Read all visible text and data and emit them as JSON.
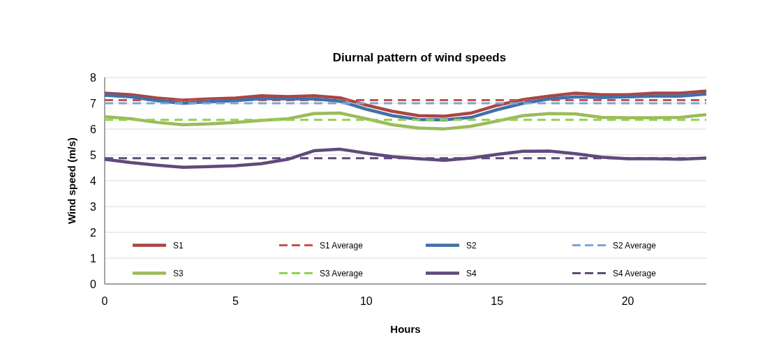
{
  "chart_data": {
    "type": "line",
    "title": "Diurnal pattern of wind speeds",
    "xlabel": "Hours",
    "ylabel": "Wind speed (m/s)",
    "x": [
      0,
      1,
      2,
      3,
      4,
      5,
      6,
      7,
      8,
      9,
      10,
      11,
      12,
      13,
      14,
      15,
      16,
      17,
      18,
      19,
      20,
      21,
      22,
      23
    ],
    "xlim": [
      0,
      23
    ],
    "xticks": [
      0,
      5,
      10,
      15,
      20
    ],
    "ylim": [
      0,
      8
    ],
    "yticks": [
      0,
      1,
      2,
      3,
      4,
      5,
      6,
      7,
      8
    ],
    "grid": "y",
    "legend": "bottom",
    "series": [
      {
        "name": "S1",
        "color": "#a94643",
        "line_style": "solid",
        "values": [
          7.39,
          7.33,
          7.2,
          7.12,
          7.17,
          7.2,
          7.29,
          7.26,
          7.29,
          7.21,
          6.93,
          6.69,
          6.52,
          6.5,
          6.62,
          6.92,
          7.14,
          7.28,
          7.39,
          7.33,
          7.33,
          7.39,
          7.39,
          7.47
        ]
      },
      {
        "name": "S1 Average",
        "color": "#c9504d",
        "line_style": "dashed",
        "values": [
          7.12,
          7.12,
          7.12,
          7.12,
          7.12,
          7.12,
          7.12,
          7.12,
          7.12,
          7.12,
          7.12,
          7.12,
          7.12,
          7.12,
          7.12,
          7.12,
          7.12,
          7.12,
          7.12,
          7.12,
          7.12,
          7.12,
          7.12,
          7.12
        ]
      },
      {
        "name": "S2",
        "color": "#4170a8",
        "line_style": "solid",
        "values": [
          7.31,
          7.25,
          7.1,
          7.0,
          7.06,
          7.1,
          7.18,
          7.17,
          7.17,
          7.08,
          6.77,
          6.52,
          6.37,
          6.36,
          6.45,
          6.75,
          7.0,
          7.17,
          7.25,
          7.22,
          7.25,
          7.28,
          7.28,
          7.36
        ]
      },
      {
        "name": "S2 Average",
        "color": "#7fa3d1",
        "line_style": "dashed",
        "values": [
          7.0,
          7.0,
          7.0,
          7.0,
          7.0,
          7.0,
          7.0,
          7.0,
          7.0,
          7.0,
          7.0,
          7.0,
          7.0,
          7.0,
          7.0,
          7.0,
          7.0,
          7.0,
          7.0,
          7.0,
          7.0,
          7.0,
          7.0,
          7.0
        ]
      },
      {
        "name": "S3",
        "color": "#9bbb59",
        "line_style": "solid",
        "values": [
          6.48,
          6.4,
          6.26,
          6.17,
          6.2,
          6.26,
          6.34,
          6.4,
          6.6,
          6.62,
          6.4,
          6.17,
          6.04,
          6.01,
          6.11,
          6.31,
          6.52,
          6.6,
          6.59,
          6.45,
          6.44,
          6.44,
          6.45,
          6.56
        ]
      },
      {
        "name": "S3 Average",
        "color": "#92d050",
        "line_style": "dashed",
        "values": [
          6.36,
          6.36,
          6.36,
          6.36,
          6.36,
          6.36,
          6.36,
          6.36,
          6.36,
          6.36,
          6.36,
          6.36,
          6.36,
          6.36,
          6.36,
          6.36,
          6.36,
          6.36,
          6.36,
          6.36,
          6.36,
          6.36,
          6.36,
          6.36
        ]
      },
      {
        "name": "S4",
        "color": "#604a7b",
        "line_style": "solid",
        "values": [
          4.83,
          4.7,
          4.6,
          4.52,
          4.55,
          4.58,
          4.66,
          4.83,
          5.16,
          5.22,
          5.07,
          4.93,
          4.85,
          4.79,
          4.88,
          5.02,
          5.14,
          5.15,
          5.05,
          4.91,
          4.85,
          4.85,
          4.83,
          4.88
        ]
      },
      {
        "name": "S4 Average",
        "color": "#604a7b",
        "line_style": "dashed",
        "values": [
          4.87,
          4.87,
          4.87,
          4.87,
          4.87,
          4.87,
          4.87,
          4.87,
          4.87,
          4.87,
          4.87,
          4.87,
          4.87,
          4.87,
          4.87,
          4.87,
          4.87,
          4.87,
          4.87,
          4.87,
          4.87,
          4.87,
          4.87,
          4.87
        ]
      }
    ]
  }
}
